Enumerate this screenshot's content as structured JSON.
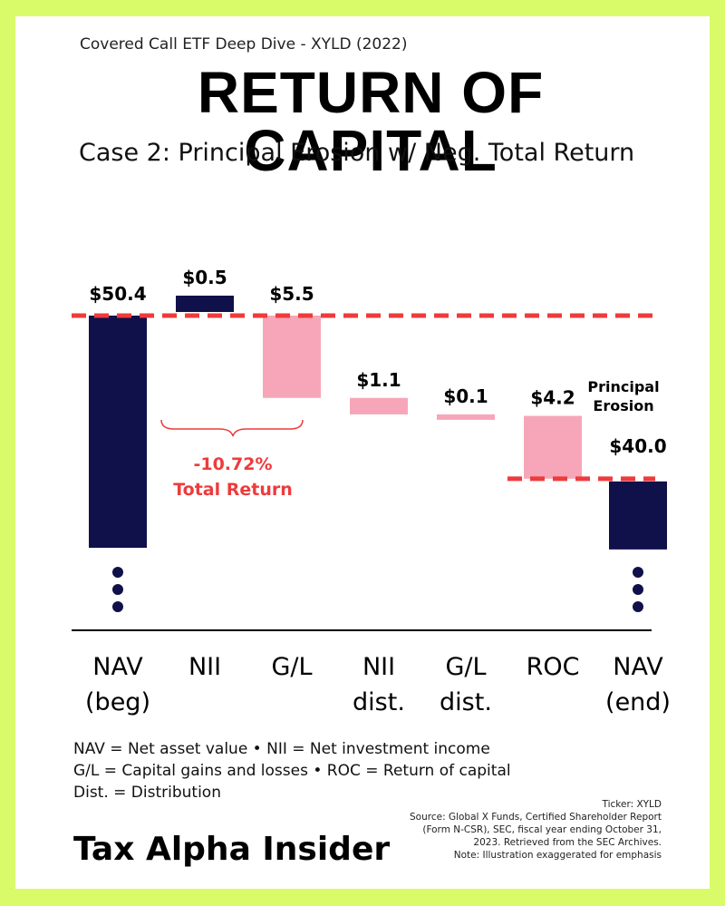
{
  "header": {
    "kicker": "Covered Call ETF Deep Dive - XYLD (2022)",
    "title": "RETURN OF CAPITAL",
    "subtitle": "Case 2: Principal Erosion w/ Neg. Total Return"
  },
  "colors": {
    "background": "#d9fb6a",
    "nav_bar": "#10104a",
    "pink_bar": "#f6a6b8",
    "dashed_line": "#ee3b3b",
    "annotation_red": "#ee3b3b"
  },
  "chart_data": {
    "type": "bar",
    "subtype": "waterfall",
    "categories": [
      [
        "NAV",
        "(beg)"
      ],
      [
        "NII"
      ],
      [
        "G/L"
      ],
      [
        "NII",
        "dist."
      ],
      [
        "G/L",
        "dist."
      ],
      [
        "ROC"
      ],
      [
        "NAV",
        "(end)"
      ]
    ],
    "bars": [
      {
        "label": "$50.4",
        "value": 50.4,
        "kind": "total",
        "color": "#10104a"
      },
      {
        "label": "$0.5",
        "value": 0.5,
        "kind": "increase",
        "color": "#10104a"
      },
      {
        "label": "$5.5",
        "value": -5.5,
        "kind": "decrease",
        "color": "#f6a6b8"
      },
      {
        "label": "$1.1",
        "value": -1.1,
        "kind": "decrease",
        "color": "#f6a6b8"
      },
      {
        "label": "$0.1",
        "value": -0.1,
        "kind": "decrease",
        "color": "#f6a6b8"
      },
      {
        "label": "$4.2",
        "value": -4.2,
        "kind": "decrease",
        "color": "#f6a6b8"
      },
      {
        "label": "$40.0",
        "value": 40.0,
        "kind": "total",
        "color": "#10104a"
      }
    ],
    "axis_break": true,
    "annotations": {
      "total_return_pct": "-10.72%",
      "total_return_label": "Total Return",
      "principal_erosion": [
        "Principal",
        "Erosion"
      ]
    }
  },
  "legend": [
    "NAV = Net asset value • NII = Net investment income",
    "G/L = Capital gains and losses • ROC = Return of capital",
    "Dist. = Distribution"
  ],
  "source": [
    "Ticker: XYLD",
    "Source: Global X Funds, Certified Shareholder Report",
    "(Form N-CSR), SEC, fiscal year ending October 31,",
    "2023. Retrieved from the SEC Archives.",
    "Note: Illustration exaggerated for emphasis"
  ],
  "brand": "Tax Alpha Insider"
}
